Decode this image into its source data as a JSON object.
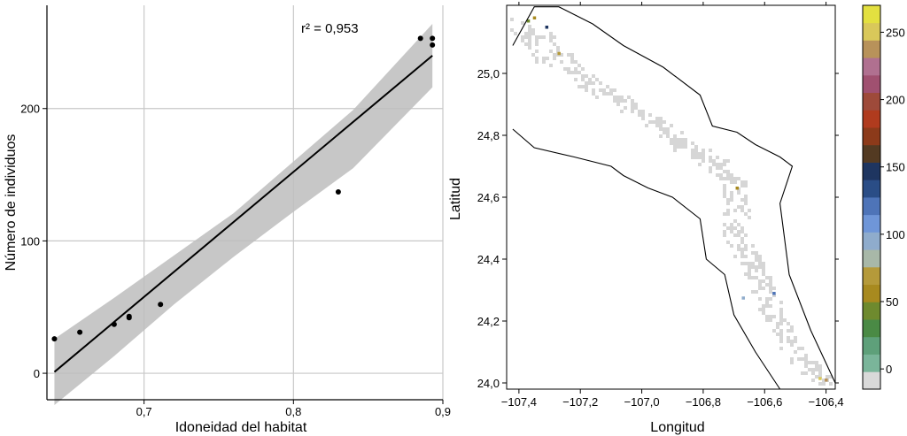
{
  "chart_data": [
    {
      "type": "scatter",
      "xlabel": "Idoneidad del habitat",
      "ylabel": "Número de individuos",
      "xlim": [
        0.635,
        0.9
      ],
      "ylim": [
        -20,
        278
      ],
      "xticks": [
        0.7,
        0.8,
        0.9
      ],
      "xtick_labels": [
        "0,7",
        "0,8",
        "0,9"
      ],
      "yticks": [
        0,
        100,
        200
      ],
      "ytick_labels": [
        "0",
        "100",
        "200"
      ],
      "grid": true,
      "annotation": "r² = 0,953",
      "series": [
        {
          "points": [
            {
              "x": 0.64,
              "y": 26
            },
            {
              "x": 0.657,
              "y": 31
            },
            {
              "x": 0.68,
              "y": 37
            },
            {
              "x": 0.69,
              "y": 42
            },
            {
              "x": 0.69,
              "y": 43
            },
            {
              "x": 0.711,
              "y": 52
            },
            {
              "x": 0.83,
              "y": 137
            },
            {
              "x": 0.885,
              "y": 253
            },
            {
              "x": 0.893,
              "y": 253
            },
            {
              "x": 0.893,
              "y": 248
            }
          ]
        }
      ],
      "fit_line": {
        "x": [
          0.64,
          0.893
        ],
        "y": [
          1,
          240
        ]
      },
      "confidence_band": {
        "x": [
          0.64,
          0.68,
          0.72,
          0.76,
          0.8,
          0.84,
          0.893
        ],
        "upper": [
          26,
          57,
          89,
          121,
          160,
          199,
          264
        ],
        "lower": [
          -24,
          13,
          52,
          88,
          122,
          155,
          216
        ]
      }
    },
    {
      "type": "heatmap",
      "xlabel": "Longitud",
      "ylabel": "Latitud",
      "xlim": [
        -107.44,
        -106.37
      ],
      "ylim": [
        23.98,
        25.22
      ],
      "xticks": [
        -107.4,
        -107.2,
        -107.0,
        -106.8,
        -106.6,
        -106.4
      ],
      "xtick_labels": [
        "−107,4",
        "−107,2",
        "−107,0",
        "−106,8",
        "−106,6",
        "−106,4"
      ],
      "yticks": [
        24.0,
        24.2,
        24.4,
        24.6,
        24.8,
        25.0
      ],
      "ytick_labels": [
        "24,0",
        "24,2",
        "24,4",
        "24,6",
        "24,8",
        "25,0"
      ],
      "boundary_outer": [
        [
          -107.42,
          25.09
        ],
        [
          -107.35,
          25.215
        ],
        [
          -107.27,
          25.215
        ],
        [
          -107.16,
          25.16
        ],
        [
          -107.06,
          25.09
        ],
        [
          -106.93,
          25.02
        ],
        [
          -106.81,
          24.93
        ],
        [
          -106.77,
          24.83
        ],
        [
          -106.69,
          24.81
        ],
        [
          -106.63,
          24.77
        ],
        [
          -106.55,
          24.73
        ],
        [
          -106.51,
          24.7
        ],
        [
          -106.55,
          24.58
        ],
        [
          -106.52,
          24.35
        ],
        [
          -106.45,
          24.17
        ],
        [
          -106.37,
          24.0
        ]
      ],
      "boundary_inner": [
        [
          -107.42,
          24.82
        ],
        [
          -107.35,
          24.76
        ],
        [
          -107.22,
          24.73
        ],
        [
          -107.1,
          24.7
        ],
        [
          -107.06,
          24.67
        ],
        [
          -106.98,
          24.63
        ],
        [
          -106.9,
          24.6
        ],
        [
          -106.81,
          24.53
        ],
        [
          -106.79,
          24.4
        ],
        [
          -106.73,
          24.35
        ],
        [
          -106.7,
          24.22
        ],
        [
          -106.63,
          24.1
        ],
        [
          -106.55,
          23.98
        ]
      ],
      "presence_path": [
        [
          -107.4,
          25.16
        ],
        [
          -107.35,
          25.12
        ],
        [
          -107.3,
          25.07
        ],
        [
          -107.24,
          25.02
        ],
        [
          -107.18,
          24.98
        ],
        [
          -107.12,
          24.94
        ],
        [
          -107.05,
          24.9
        ],
        [
          -106.98,
          24.86
        ],
        [
          -106.92,
          24.82
        ],
        [
          -106.86,
          24.77
        ],
        [
          -106.8,
          24.73
        ],
        [
          -106.74,
          24.69
        ],
        [
          -106.7,
          24.64
        ],
        [
          -106.69,
          24.58
        ],
        [
          -106.7,
          24.52
        ],
        [
          -106.69,
          24.47
        ],
        [
          -106.67,
          24.42
        ],
        [
          -106.64,
          24.38
        ],
        [
          -106.62,
          24.33
        ],
        [
          -106.6,
          24.28
        ],
        [
          -106.58,
          24.23
        ],
        [
          -106.55,
          24.18
        ],
        [
          -106.52,
          24.12
        ],
        [
          -106.48,
          24.07
        ],
        [
          -106.44,
          24.03
        ],
        [
          -106.4,
          24.0
        ]
      ],
      "colored_cells": [
        {
          "lon": -107.37,
          "lat": 25.17,
          "value": 45
        },
        {
          "lon": -107.35,
          "lat": 25.18,
          "value": 55
        },
        {
          "lon": -107.31,
          "lat": 25.15,
          "value": 150
        },
        {
          "lon": -107.27,
          "lat": 25.065,
          "value": 75
        },
        {
          "lon": -106.69,
          "lat": 24.63,
          "value": 60
        },
        {
          "lon": -106.67,
          "lat": 24.275,
          "value": 90
        },
        {
          "lon": -106.57,
          "lat": 24.29,
          "value": 115
        },
        {
          "lon": -106.42,
          "lat": 24.015,
          "value": 255
        },
        {
          "lon": -106.4,
          "lat": 24.01,
          "value": 235
        }
      ],
      "colorbar": {
        "ticks": [
          0,
          50,
          100,
          150,
          200,
          250
        ],
        "tick_labels": [
          "0",
          "50",
          "100",
          "150",
          "200",
          "250"
        ],
        "range": [
          -15,
          270
        ],
        "colors": [
          "#d9d9d9",
          "#7ab59a",
          "#5ea07a",
          "#4a8a45",
          "#6e8a2e",
          "#a88a1f",
          "#b59a3a",
          "#a8b8a8",
          "#8faccc",
          "#6f96d8",
          "#4e74b8",
          "#2a4d86",
          "#1e3560",
          "#533a22",
          "#8c3a1a",
          "#b03b1e",
          "#9e4a3a",
          "#a05070",
          "#b07090",
          "#b8925a",
          "#d9c85a",
          "#e3e040"
        ]
      }
    }
  ]
}
